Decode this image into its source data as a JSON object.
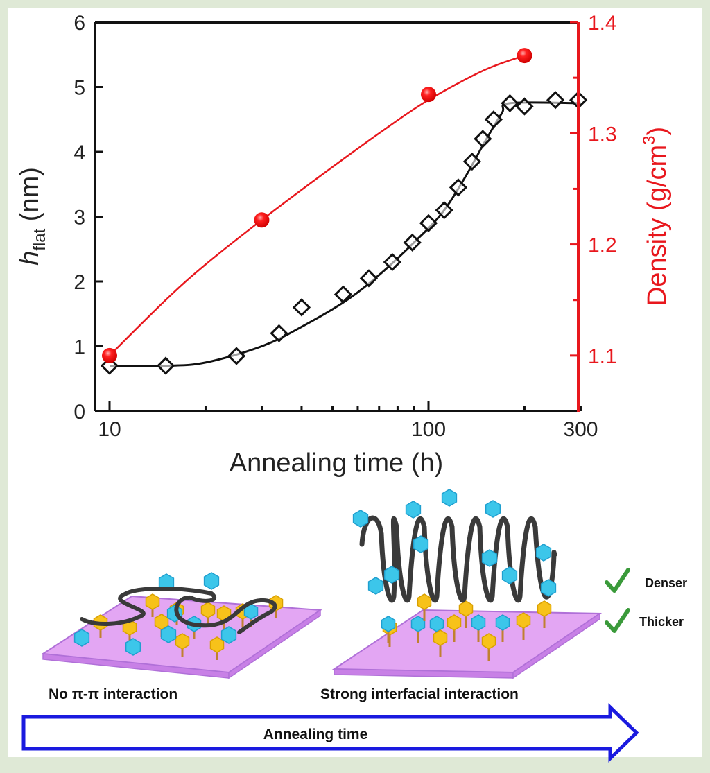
{
  "chart_data": {
    "type": "scatter",
    "title": "",
    "xlabel": "Annealing time (h)",
    "xscale": "log",
    "xlim": [
      9.1,
      300
    ],
    "xticks": [
      10,
      100,
      300
    ],
    "xtick_labels": [
      "10",
      "100",
      "300"
    ],
    "ylabel_left": {
      "main": "h",
      "sub": "flat",
      "unit": " (nm)"
    },
    "ylim_left": [
      0,
      6
    ],
    "yticks_left": [
      0,
      1,
      2,
      3,
      4,
      5,
      6
    ],
    "ylabel_right": {
      "main": "Density (g/cm",
      "sup": "3",
      "end": ")"
    },
    "ylim_right": [
      1.05,
      1.4
    ],
    "yticks_right": [
      1.1,
      1.2,
      1.3,
      1.4
    ],
    "yticks_right_labels": [
      "1.1",
      "1.2",
      "1.3",
      "1.4"
    ],
    "grid": false,
    "series": [
      {
        "name": "h_flat",
        "axis": "left",
        "marker": "open-diamond",
        "color": "#111111",
        "x": [
          10,
          15,
          25,
          34,
          40,
          54,
          65,
          77,
          89,
          100,
          112,
          124,
          137,
          148,
          160,
          180,
          200,
          250,
          295
        ],
        "y": [
          0.7,
          0.7,
          0.85,
          1.2,
          1.6,
          1.8,
          2.05,
          2.3,
          2.6,
          2.9,
          3.1,
          3.45,
          3.85,
          4.2,
          4.5,
          4.75,
          4.7,
          4.8,
          4.8
        ],
        "fit": {
          "x": [
            10,
            15,
            20,
            30,
            40,
            55,
            70,
            90,
            110,
            130,
            150,
            170,
            180,
            300
          ],
          "y": [
            0.7,
            0.7,
            0.75,
            1.0,
            1.3,
            1.7,
            2.1,
            2.6,
            3.05,
            3.6,
            4.15,
            4.6,
            4.75,
            4.75
          ]
        }
      },
      {
        "name": "Density",
        "axis": "right",
        "marker": "filled-sphere",
        "color": "#e8171d",
        "x": [
          10,
          30,
          100,
          200
        ],
        "y": [
          1.1,
          1.222,
          1.335,
          1.37
        ],
        "fit": {
          "x": [
            10,
            15,
            20,
            30,
            45,
            70,
            100,
            150,
            200
          ],
          "y": [
            1.1,
            1.15,
            1.182,
            1.222,
            1.26,
            1.3,
            1.33,
            1.357,
            1.37
          ]
        }
      }
    ]
  },
  "schematic": {
    "left_caption": "No π-π interaction",
    "right_caption": "Strong interfacial interaction",
    "checks": [
      "Denser",
      "Thicker"
    ],
    "arrow_label": "Annealing time",
    "colors": {
      "substrate": "#e0a0f0",
      "substrate_edge": "#b070d8",
      "yellow": "#f7c21a",
      "cyan": "#3cc6ea",
      "chain": "#3a3a3a",
      "arrow": "#1a1adf",
      "check": "#3a9a3a"
    }
  }
}
